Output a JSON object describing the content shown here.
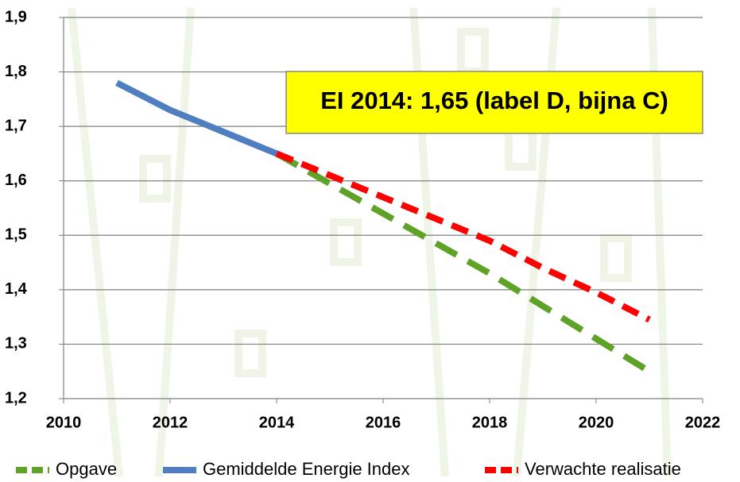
{
  "chart_data": {
    "type": "line",
    "annotation": "EI 2014: 1,65 (label D, bijna C)",
    "x": [
      2011,
      2012,
      2013,
      2014,
      2015,
      2016,
      2017,
      2018,
      2019,
      2020,
      2021
    ],
    "series": [
      {
        "name": "Opgave",
        "color": "#5ea228",
        "style": "dashed",
        "values": [
          null,
          null,
          null,
          1.65,
          1.595,
          1.54,
          1.485,
          1.43,
          1.37,
          1.31,
          1.25
        ]
      },
      {
        "name": "Gemiddelde Energie Index",
        "color": "#4f7fc0",
        "style": "solid",
        "values": [
          1.78,
          1.73,
          1.69,
          1.65,
          null,
          null,
          null,
          null,
          null,
          null,
          null
        ]
      },
      {
        "name": "Verwachte realisatie",
        "color": "#ff0000",
        "style": "dashed",
        "values": [
          null,
          null,
          null,
          1.65,
          1.61,
          1.57,
          1.53,
          1.49,
          1.44,
          1.395,
          1.345
        ]
      }
    ],
    "xlim": [
      2010,
      2022
    ],
    "xticks": [
      2010,
      2012,
      2014,
      2016,
      2018,
      2020,
      2022
    ],
    "ylim": [
      1.2,
      1.9
    ],
    "yticks": [
      {
        "value": 1.2,
        "label": "1,2"
      },
      {
        "value": 1.3,
        "label": "1,3"
      },
      {
        "value": 1.4,
        "label": "1,4"
      },
      {
        "value": 1.5,
        "label": "1,5"
      },
      {
        "value": 1.6,
        "label": "1,6"
      },
      {
        "value": 1.7,
        "label": "1,7"
      },
      {
        "value": 1.8,
        "label": "1,8"
      },
      {
        "value": 1.9,
        "label": "1,9"
      }
    ],
    "grid": true,
    "legend": "bottom"
  }
}
